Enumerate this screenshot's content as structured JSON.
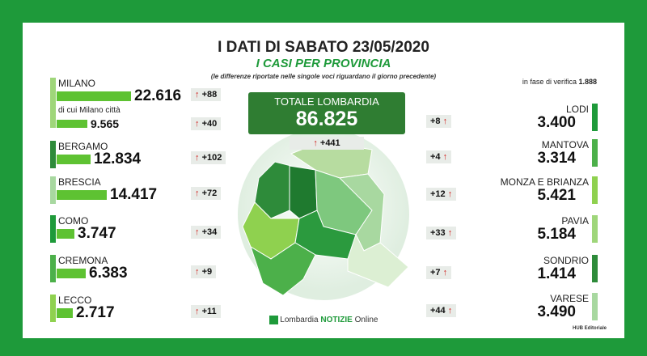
{
  "header": {
    "title": "I DATI DI SABATO 23/05/2020",
    "subtitle": "I CASI PER PROVINCIA",
    "note": "(le differenze riportate nelle singole voci riguardano il giorno precedente)"
  },
  "verification": {
    "label": "in fase di verifica",
    "value": "1.888"
  },
  "total": {
    "label": "TOTALE LOMBARDIA",
    "value": "86.825",
    "delta": "+441"
  },
  "milano_city": {
    "label": "di cui Milano città",
    "value": "9.565",
    "delta": "+40"
  },
  "left": [
    {
      "name": "MILANO",
      "value": "22.616",
      "delta": "+88"
    },
    {
      "name": "BERGAMO",
      "value": "12.834",
      "delta": "+102"
    },
    {
      "name": "BRESCIA",
      "value": "14.417",
      "delta": "+72"
    },
    {
      "name": "COMO",
      "value": "3.747",
      "delta": "+34"
    },
    {
      "name": "CREMONA",
      "value": "6.383",
      "delta": "+9"
    },
    {
      "name": "LECCO",
      "value": "2.717",
      "delta": "+11"
    }
  ],
  "right": [
    {
      "name": "LODI",
      "value": "3.400",
      "delta": "+8"
    },
    {
      "name": "MANTOVA",
      "value": "3.314",
      "delta": "+4"
    },
    {
      "name": "MONZA E BRIANZA",
      "value": "5.421",
      "delta": "+12"
    },
    {
      "name": "PAVIA",
      "value": "5.184",
      "delta": "+33"
    },
    {
      "name": "SONDRIO",
      "value": "1.414",
      "delta": "+7"
    },
    {
      "name": "VARESE",
      "value": "3.490",
      "delta": "+44"
    }
  ],
  "footer": {
    "logo_main": "Lombardia",
    "logo_bold": "NOTIZIE",
    "logo_tail": "Online",
    "credit": "HUB Editoriale"
  }
}
